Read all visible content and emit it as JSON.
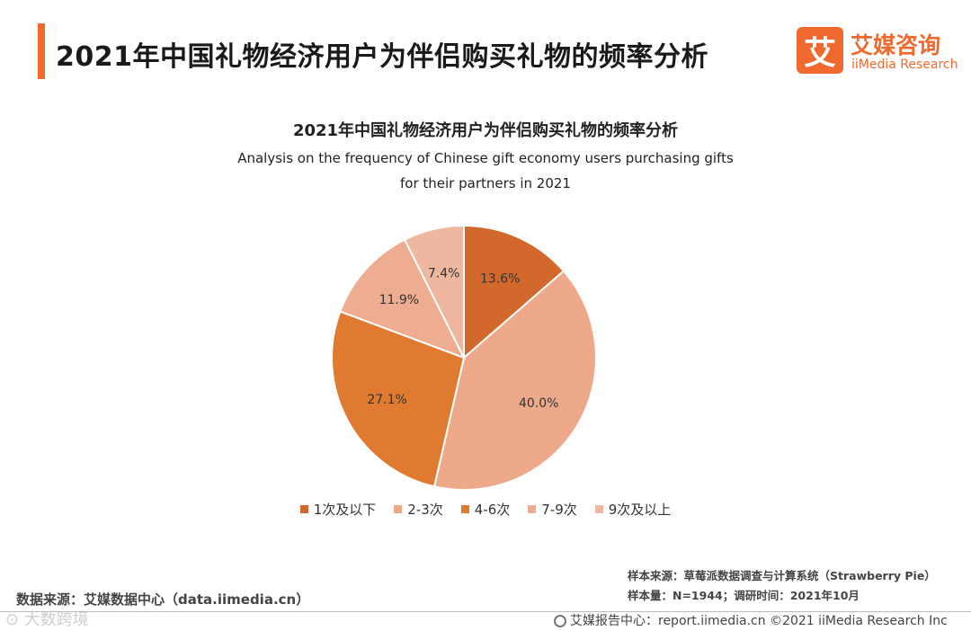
{
  "header": {
    "title": "2021年中国礼物经济用户为伴侣购买礼物的频率分析"
  },
  "logo": {
    "mark": "艾",
    "name_cn": "艾媒咨询",
    "name_en": "iiMedia Research"
  },
  "chart_data": {
    "type": "pie",
    "title": "2021年中国礼物经济用户为伴侣购买礼物的频率分析",
    "subtitle_line1": "Analysis on the frequency of Chinese gift economy users purchasing gifts",
    "subtitle_line2": "for their partners in 2021",
    "categories": [
      "1次及以下",
      "2-3次",
      "4-6次",
      "7-9次",
      "9次及以上"
    ],
    "values": [
      13.6,
      40.0,
      27.1,
      11.9,
      7.4
    ],
    "value_labels": [
      "13.6%",
      "40.0%",
      "27.1%",
      "11.9%",
      "7.4%"
    ],
    "colors": [
      "#d2682c",
      "#eea98a",
      "#e07a30",
      "#eeac90",
      "#efb7a0"
    ],
    "start_angle": "top",
    "direction": "clockwise",
    "legend_position": "bottom"
  },
  "sources": {
    "left": "数据来源：艾媒数据中心（data.iimedia.cn）",
    "sample_source": "样本来源：草莓派数据调查与计算系统（Strawberry Pie）",
    "sample_size": "样本量：N=1944；调研时间：2021年10月"
  },
  "footer": {
    "text": "艾媒报告中心：report.iimedia.cn   ©2021  iiMedia Research  Inc"
  },
  "watermark": {
    "text": "⊙ 大数跨境"
  }
}
